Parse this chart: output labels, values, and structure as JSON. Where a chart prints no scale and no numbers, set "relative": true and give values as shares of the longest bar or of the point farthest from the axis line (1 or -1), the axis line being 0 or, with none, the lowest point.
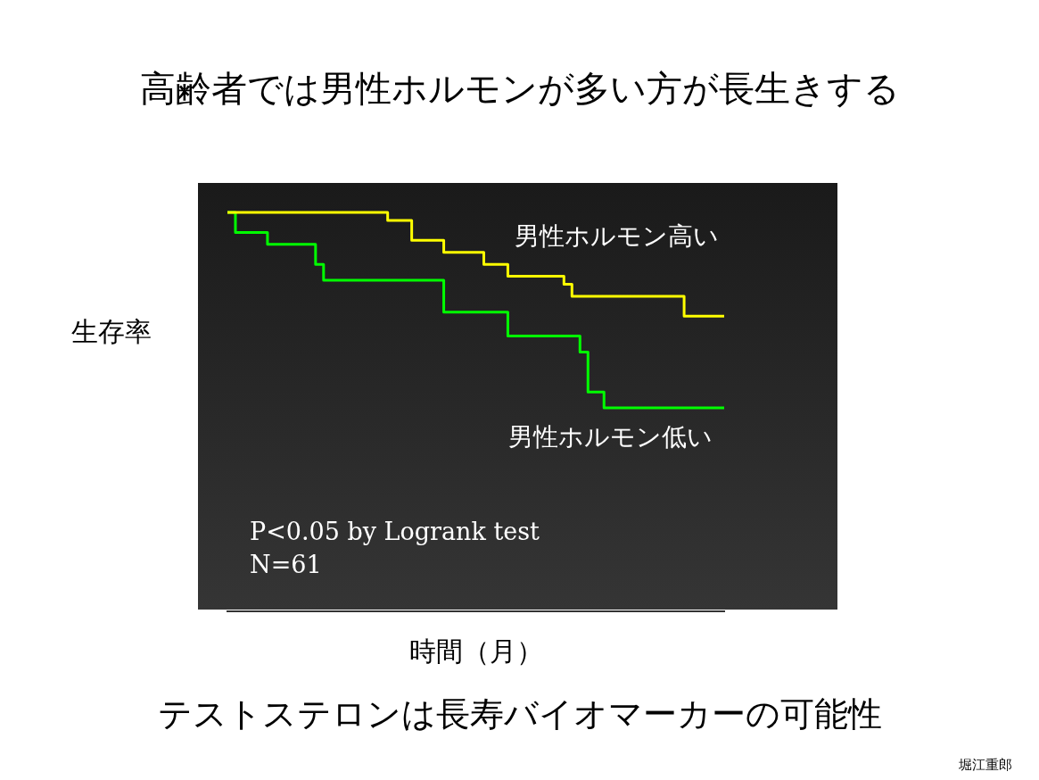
{
  "chart_data": {
    "type": "step",
    "title": "高齢者では男性ホルモンが多い方が長生きする",
    "xlabel": "時間（月）",
    "ylabel": "生存率",
    "relative": true,
    "annotations": [
      "P<0.05 by Logrank test",
      "N=61",
      "テストステロンは長寿バイオマーカーの可能性",
      "堀江重郎"
    ],
    "categories": [
      null,
      null,
      null,
      null,
      null,
      null,
      null,
      null,
      null,
      null,
      null,
      null,
      null,
      null,
      null,
      null,
      null,
      null,
      null,
      null,
      null,
      null,
      null,
      null,
      null,
      null,
      null,
      null,
      null,
      null,
      null,
      null,
      null,
      null,
      null,
      null,
      null,
      null,
      null,
      null,
      null,
      null,
      null,
      null,
      null,
      null,
      null,
      null,
      null,
      null,
      null,
      null,
      null,
      null,
      null,
      null,
      null,
      null,
      null,
      null,
      null,
      null,
      null
    ],
    "series": [
      {
        "name": "男性ホルモン高い",
        "color": "#ffff00",
        "values": [
          1,
          1,
          1,
          1,
          1,
          1,
          1,
          1,
          1,
          1,
          1,
          1,
          1,
          1,
          1,
          1,
          1,
          1,
          1,
          1,
          1,
          0.98,
          0.98,
          0.98,
          0.93,
          0.93,
          0.93,
          0.93,
          0.9,
          0.9,
          0.9,
          0.9,
          0.9,
          0.87,
          0.87,
          0.87,
          0.84,
          0.84,
          0.84,
          0.84,
          0.84,
          0.84,
          0.84,
          0.82,
          0.79,
          0.79,
          0.79,
          0.79,
          0.79,
          0.79,
          0.79,
          0.79,
          0.79,
          0.79,
          0.79,
          0.79,
          0.79,
          0.79,
          0.74,
          0.74,
          0.74,
          0.74,
          0.74
        ]
      },
      {
        "name": "男性ホルモン低い",
        "color": "#00ff00",
        "values": [
          1,
          1,
          0.95,
          0.95,
          0.95,
          0.95,
          0.92,
          0.92,
          0.92,
          0.92,
          0.92,
          0.92,
          0.87,
          0.83,
          0.83,
          0.83,
          0.83,
          0.83,
          0.83,
          0.83,
          0.83,
          0.83,
          0.83,
          0.83,
          0.83,
          0.83,
          0.83,
          0.83,
          0.75,
          0.75,
          0.75,
          0.75,
          0.75,
          0.75,
          0.75,
          0.75,
          0.69,
          0.69,
          0.69,
          0.69,
          0.69,
          0.69,
          0.69,
          0.69,
          0.69,
          0.65,
          0.55,
          0.55,
          0.51,
          0.51,
          0.51,
          0.51,
          0.51,
          0.51,
          0.51,
          0.51,
          0.51,
          0.51,
          0.51,
          0.51,
          0.51,
          0.51,
          0.51
        ]
      }
    ]
  }
}
